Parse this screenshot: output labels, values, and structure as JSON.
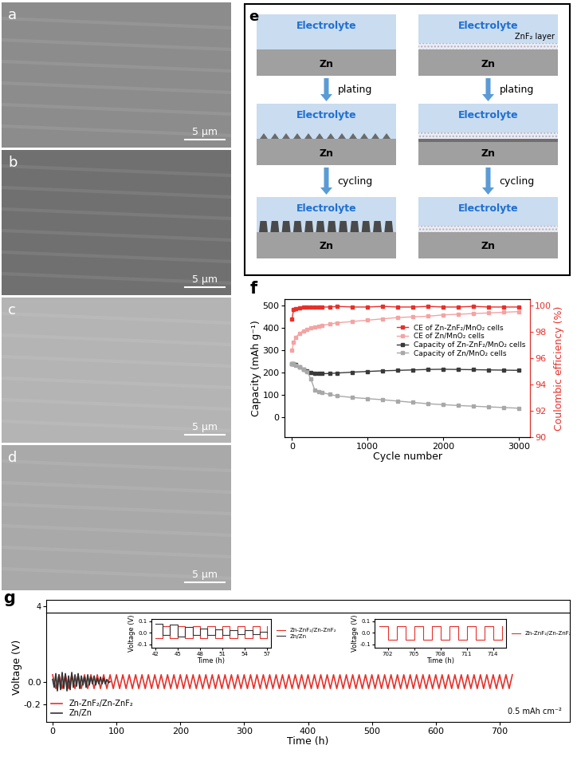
{
  "images": [
    {
      "panel": "a",
      "scale_bar": "5 μm"
    },
    {
      "panel": "b",
      "scale_bar": "5 μm"
    },
    {
      "panel": "c",
      "scale_bar": "5 μm"
    },
    {
      "panel": "d",
      "scale_bar": "5 μm"
    }
  ],
  "diagram": {
    "panel": "e",
    "electrolyte": "Electrolyte",
    "anode": "Zn",
    "coating": "ZnF₂ layer",
    "steps": [
      "plating",
      "cycling"
    ]
  },
  "chart_data": [
    {
      "panel": "f",
      "type": "line",
      "xlabel": "Cycle number",
      "ylabel": "Capacity (mAh g⁻¹)",
      "y2label": "Coulombic efficiency (%)",
      "xlim": [
        -100,
        3150
      ],
      "xticks": [
        0,
        1000,
        2000,
        3000
      ],
      "ylim": [
        -90,
        530
      ],
      "yticks": [
        0,
        100,
        200,
        300,
        400,
        500
      ],
      "y2lim": [
        90,
        100.5
      ],
      "y2ticks": [
        90,
        92,
        94,
        96,
        98,
        100
      ],
      "legend": "center right",
      "x": [
        0,
        20,
        50,
        100,
        150,
        200,
        250,
        300,
        350,
        400,
        500,
        600,
        800,
        1000,
        1200,
        1400,
        1600,
        1800,
        2000,
        2200,
        2400,
        2600,
        2800,
        3000
      ],
      "series": [
        {
          "name": "CE of Zn-ZnF₂/MnO₂ cells",
          "color": "#e8302a",
          "marker": "square",
          "axis": "y2",
          "values": [
            99.0,
            99.7,
            99.8,
            99.85,
            99.9,
            99.9,
            99.9,
            99.9,
            99.9,
            99.9,
            99.9,
            99.95,
            99.9,
            99.9,
            99.95,
            99.9,
            99.9,
            99.95,
            99.9,
            99.9,
            99.95,
            99.9,
            99.9,
            99.9
          ]
        },
        {
          "name": "CE of Zn/MnO₂ cells",
          "color": "#f4a3a3",
          "marker": "square",
          "axis": "y2",
          "values": [
            96.6,
            97.2,
            97.6,
            97.9,
            98.1,
            98.2,
            98.3,
            98.4,
            98.45,
            98.5,
            98.6,
            98.7,
            98.8,
            98.9,
            99.0,
            99.1,
            99.15,
            99.2,
            99.3,
            99.35,
            99.4,
            99.45,
            99.5,
            99.55
          ]
        },
        {
          "name": "Capacity of Zn-ZnF₂/MnO₂ cells",
          "color": "#3a3a3a",
          "marker": "square",
          "values": [
            240,
            240,
            235,
            225,
            215,
            208,
            202,
            198,
            195,
            195,
            196,
            198,
            202,
            205,
            208,
            210,
            212,
            214,
            215,
            214,
            213,
            212,
            211,
            210
          ]
        },
        {
          "name": "Capacity of Zn/MnO₂ cells",
          "color": "#a8a8a8",
          "marker": "square",
          "values": [
            240,
            238,
            232,
            225,
            215,
            205,
            170,
            122,
            115,
            110,
            102,
            95,
            88,
            83,
            78,
            72,
            66,
            60,
            56,
            52,
            49,
            46,
            43,
            40
          ]
        }
      ]
    },
    {
      "panel": "g",
      "type": "line",
      "xlabel": "Time (h)",
      "ylabel": "Voltage (V)",
      "xlim": [
        -10,
        810
      ],
      "xticks": [
        0,
        100,
        200,
        300,
        400,
        500,
        600,
        700
      ],
      "ylim": [
        -0.35,
        0.6
      ],
      "yticks": [
        -0.2,
        {
          "value": 0,
          "label": "0.0"
        }
      ],
      "legend": "lower left",
      "annotation": "0.5 mAh cm⁻²",
      "series": [
        {
          "name": "Zn-ZnF₂/Zn-ZnF₂",
          "color": "#e8302a",
          "x": [
            0,
            5,
            10,
            15,
            20,
            25,
            30,
            35,
            40,
            45,
            50,
            55,
            60,
            65,
            70,
            75,
            80,
            85,
            90,
            95,
            100,
            105,
            110,
            115,
            120,
            125,
            130,
            135,
            140,
            145,
            150,
            155,
            160,
            165,
            170,
            175,
            180,
            185,
            190,
            195,
            200,
            205,
            210,
            215,
            220,
            225,
            230,
            235,
            240,
            245,
            250,
            255,
            260,
            265,
            270,
            275,
            280,
            285,
            290,
            295,
            300,
            305,
            310,
            315,
            320,
            325,
            330,
            335,
            340,
            345,
            350,
            355,
            360,
            365,
            370,
            375,
            380,
            385,
            390,
            395,
            400,
            405,
            410,
            415,
            420,
            425,
            430,
            435,
            440,
            445,
            450,
            455,
            460,
            465,
            470,
            475,
            480,
            485,
            490,
            495,
            500,
            505,
            510,
            515,
            520,
            525,
            530,
            535,
            540,
            545,
            550,
            555,
            560,
            565,
            570,
            575,
            580,
            585,
            590,
            595,
            600,
            605,
            610,
            615,
            620,
            625,
            630,
            635,
            640,
            645,
            650,
            655,
            660,
            665,
            670,
            675,
            680,
            685,
            690,
            695,
            700,
            705,
            710,
            715,
            720
          ],
          "values": [
            0.06,
            -0.06,
            0.06,
            -0.06,
            0.06,
            -0.06,
            0.06,
            -0.06,
            0.06,
            -0.06,
            0.06,
            -0.06,
            0.06,
            -0.06,
            0.06,
            -0.06,
            0.06,
            -0.06,
            0.06,
            -0.06,
            0.06,
            -0.06,
            0.06,
            -0.06,
            0.06,
            -0.06,
            0.06,
            -0.06,
            0.06,
            -0.06,
            0.06,
            -0.06,
            0.06,
            -0.06,
            0.06,
            -0.06,
            0.06,
            -0.06,
            0.06,
            -0.06,
            0.06,
            -0.06,
            0.06,
            -0.06,
            0.06,
            -0.06,
            0.06,
            -0.06,
            0.06,
            -0.06,
            0.06,
            -0.06,
            0.06,
            -0.06,
            0.06,
            -0.06,
            0.06,
            -0.06,
            0.06,
            -0.06,
            0.06,
            -0.06,
            0.06,
            -0.06,
            0.06,
            -0.06,
            0.06,
            -0.06,
            0.06,
            -0.06,
            0.06,
            -0.06,
            0.06,
            -0.06,
            0.06,
            -0.06,
            0.06,
            -0.06,
            0.06,
            -0.06,
            0.06,
            -0.06,
            0.06,
            -0.06,
            0.06,
            -0.06,
            0.06,
            -0.06,
            0.06,
            -0.06,
            0.06,
            -0.06,
            0.06,
            -0.06,
            0.06,
            -0.06,
            0.06,
            -0.06,
            0.06,
            -0.06,
            0.06,
            -0.06,
            0.06,
            -0.06,
            0.06,
            -0.06,
            0.06,
            -0.06,
            0.06,
            -0.06,
            0.06,
            -0.06,
            0.06,
            -0.06,
            0.06,
            -0.06,
            0.06,
            -0.06,
            0.06,
            -0.06,
            0.06,
            -0.06,
            0.06,
            -0.06,
            0.06,
            -0.06,
            0.06,
            -0.06,
            0.06,
            -0.06,
            0.06,
            -0.06,
            0.06,
            -0.06,
            0.06,
            -0.06,
            0.06,
            -0.06,
            0.06,
            -0.06,
            0.06,
            -0.06,
            0.06,
            -0.06,
            0.06
          ]
        },
        {
          "name": "Zn/Zn",
          "color": "#333333",
          "x": [
            0,
            2.5,
            5,
            7.5,
            10,
            12.5,
            15,
            17.5,
            20,
            22.5,
            25,
            27.5,
            30,
            32.5,
            35,
            37.5,
            40,
            42.5,
            45,
            47.5,
            50,
            52.5,
            55,
            57.5,
            60,
            62.5,
            65,
            67.5,
            70,
            72.5,
            75,
            77.5,
            80,
            82.5,
            85,
            87.5,
            90
          ],
          "values": [
            0.02,
            -0.05,
            0.07,
            -0.08,
            0.06,
            -0.07,
            0.08,
            -0.06,
            0.07,
            -0.08,
            0.05,
            -0.07,
            0.08,
            -0.05,
            0.06,
            -0.04,
            0.07,
            -0.06,
            0.05,
            -0.03,
            0.04,
            -0.05,
            0.06,
            -0.03,
            0.04,
            -0.02,
            0.05,
            -0.03,
            0.03,
            -0.02,
            0.04,
            -0.02,
            0.03,
            -0.02,
            0.02,
            -0.01,
            0.0
          ]
        }
      ]
    },
    {
      "type": "line",
      "xlim": [
        -10,
        810
      ],
      "ylim": [
        3.8,
        4.2
      ],
      "yticks": [
        4
      ],
      "tick_labels": "y",
      "series": []
    },
    {
      "type": "line",
      "xlabel": "Time (h)",
      "ylabel": "Voltage (V)",
      "xlim": [
        41.5,
        57.5
      ],
      "xticks": [
        42,
        45,
        48,
        51,
        54,
        57
      ],
      "ylim": [
        -0.13,
        0.12
      ],
      "yticks": [
        -0.1,
        {
          "value": 0,
          "label": "0.0"
        },
        0.1
      ],
      "legend": "center left",
      "series": [
        {
          "name": "Zn-ZnF₂/Zn-ZnF₂",
          "color": "#e8302a",
          "line_style": "steps",
          "x": [
            42,
            43,
            44,
            45,
            46,
            47,
            48,
            49,
            50,
            51,
            52,
            53,
            54,
            55,
            56,
            57
          ],
          "values": [
            -0.05,
            0.06,
            -0.05,
            0.06,
            -0.05,
            0.06,
            -0.05,
            0.06,
            -0.05,
            0.06,
            -0.05,
            0.06,
            -0.05,
            0.06,
            -0.05,
            0.06
          ]
        },
        {
          "name": "Zn/Zn",
          "color": "#333333",
          "line_style": "steps",
          "x": [
            42,
            43,
            44,
            45,
            46,
            47,
            48,
            49,
            50,
            51,
            52,
            53,
            54,
            55,
            56,
            57
          ],
          "values": [
            0.08,
            -0.02,
            0.07,
            -0.03,
            0.05,
            -0.02,
            0.04,
            -0.02,
            0.03,
            -0.02,
            0.02,
            -0.01,
            0.02,
            -0.01,
            0.01,
            0.0
          ]
        }
      ]
    },
    {
      "type": "line",
      "xlabel": "Time (h)",
      "ylabel": "Voltage (V)",
      "xlim": [
        700.5,
        715.5
      ],
      "xticks": [
        702,
        705,
        708,
        711,
        714
      ],
      "ylim": [
        -0.13,
        0.12
      ],
      "yticks": [
        -0.1,
        {
          "value": 0,
          "label": "0.0"
        },
        0.1
      ],
      "legend": "center left",
      "series": [
        {
          "name": "Zn-ZnF₂/Zn-ZnF₂",
          "color": "#e8302a",
          "line_style": "steps",
          "x": [
            701,
            702,
            703,
            704,
            705,
            706,
            707,
            708,
            709,
            710,
            711,
            712,
            713,
            714,
            715
          ],
          "values": [
            0.06,
            -0.06,
            0.06,
            -0.06,
            0.06,
            -0.06,
            0.06,
            -0.06,
            0.06,
            -0.06,
            0.06,
            -0.06,
            0.06,
            -0.06,
            0.06
          ]
        }
      ]
    }
  ]
}
